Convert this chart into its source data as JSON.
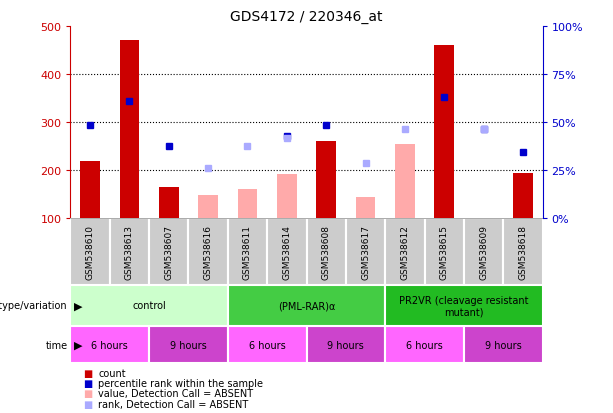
{
  "title": "GDS4172 / 220346_at",
  "samples": [
    "GSM538610",
    "GSM538613",
    "GSM538607",
    "GSM538616",
    "GSM538611",
    "GSM538614",
    "GSM538608",
    "GSM538617",
    "GSM538612",
    "GSM538615",
    "GSM538609",
    "GSM538618"
  ],
  "count_values": [
    220,
    470,
    165,
    null,
    null,
    null,
    260,
    null,
    null,
    460,
    null,
    195
  ],
  "count_absent_values": [
    null,
    null,
    null,
    148,
    162,
    193,
    null,
    145,
    255,
    null,
    null,
    null
  ],
  "percentile_values": [
    295,
    345,
    250,
    null,
    null,
    272,
    295,
    null,
    null,
    352,
    285,
    238
  ],
  "percentile_absent_values": [
    null,
    null,
    null,
    205,
    250,
    268,
    null,
    215,
    285,
    null,
    285,
    null
  ],
  "ylim_left": [
    100,
    500
  ],
  "ylim_right": [
    0,
    100
  ],
  "yticks_left": [
    100,
    200,
    300,
    400,
    500
  ],
  "yticks_right": [
    0,
    25,
    50,
    75,
    100
  ],
  "genotype_groups": [
    {
      "label": "control",
      "start": 0,
      "end": 3,
      "color": "#ccffcc"
    },
    {
      "label": "(PML-RAR)α",
      "start": 4,
      "end": 7,
      "color": "#44cc44"
    },
    {
      "label": "PR2VR (cleavage resistant\nmutant)",
      "start": 8,
      "end": 11,
      "color": "#22bb22"
    }
  ],
  "time_groups": [
    {
      "label": "6 hours",
      "start": 0,
      "end": 1,
      "color": "#ff66ff"
    },
    {
      "label": "9 hours",
      "start": 2,
      "end": 3,
      "color": "#cc44cc"
    },
    {
      "label": "6 hours",
      "start": 4,
      "end": 5,
      "color": "#ff66ff"
    },
    {
      "label": "9 hours",
      "start": 6,
      "end": 7,
      "color": "#cc44cc"
    },
    {
      "label": "6 hours",
      "start": 8,
      "end": 9,
      "color": "#ff66ff"
    },
    {
      "label": "9 hours",
      "start": 10,
      "end": 11,
      "color": "#cc44cc"
    }
  ],
  "bar_width": 0.5,
  "count_color": "#cc0000",
  "count_absent_color": "#ffaaaa",
  "percentile_color": "#0000cc",
  "percentile_absent_color": "#aaaaff",
  "axis_left_color": "#cc0000",
  "axis_right_color": "#0000cc",
  "legend_items": [
    {
      "color": "#cc0000",
      "label": "count"
    },
    {
      "color": "#0000cc",
      "label": "percentile rank within the sample"
    },
    {
      "color": "#ffaaaa",
      "label": "value, Detection Call = ABSENT"
    },
    {
      "color": "#aaaaff",
      "label": "rank, Detection Call = ABSENT"
    }
  ]
}
